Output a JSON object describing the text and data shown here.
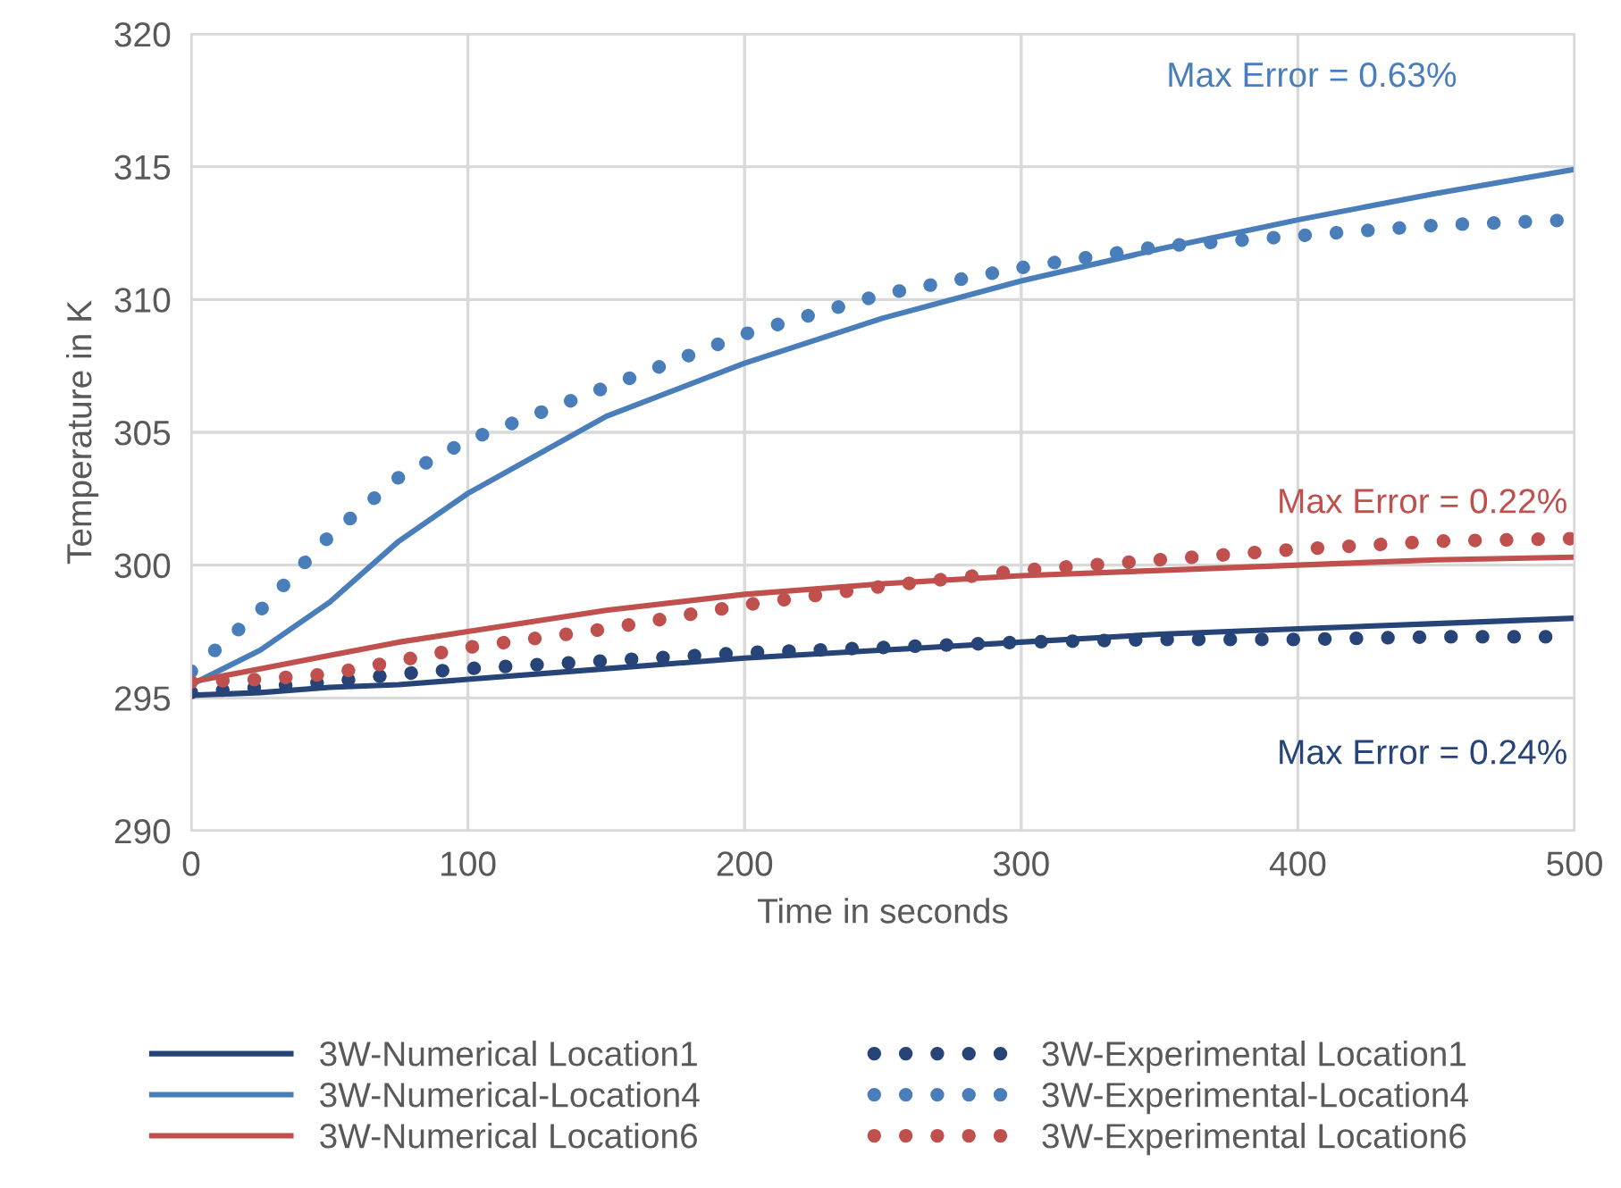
{
  "chart_data": {
    "type": "line",
    "xlabel": "Time in seconds",
    "ylabel": "Temperature in K",
    "x": [
      0,
      25,
      50,
      75,
      100,
      150,
      200,
      250,
      300,
      350,
      400,
      450,
      500
    ],
    "xlim": [
      0,
      500
    ],
    "xticks": [
      0,
      100,
      200,
      300,
      400,
      500
    ],
    "ylim": [
      290,
      320
    ],
    "yticks": [
      290,
      295,
      300,
      305,
      310,
      315,
      320
    ],
    "grid": true,
    "legend": "bottom",
    "series": [
      {
        "name": "3W-Numerical Location1",
        "color": "#264478",
        "line_style": "solid",
        "values": [
          295.1,
          295.2,
          295.4,
          295.5,
          295.7,
          296.1,
          296.5,
          296.8,
          297.1,
          297.4,
          297.6,
          297.8,
          298.0
        ]
      },
      {
        "name": "3W-Numerical-Location4",
        "color": "#4a7ebb",
        "line_style": "solid",
        "values": [
          295.5,
          296.8,
          298.6,
          300.9,
          302.7,
          305.6,
          307.6,
          309.3,
          310.7,
          311.9,
          313.0,
          314.0,
          314.9
        ]
      },
      {
        "name": "3W-Numerical Location6",
        "color": "#c0504d",
        "line_style": "solid",
        "values": [
          295.6,
          296.1,
          296.6,
          297.1,
          297.5,
          298.3,
          298.9,
          299.3,
          299.6,
          299.8,
          300.0,
          300.2,
          300.3
        ]
      },
      {
        "name": "3W-Experimental Location1",
        "color": "#264478",
        "line_style": "dotted",
        "values": [
          295.2,
          295.4,
          295.6,
          295.9,
          296.1,
          296.4,
          296.7,
          296.9,
          297.1,
          297.2,
          297.2,
          297.3,
          297.3
        ]
      },
      {
        "name": "3W-Experimental-Location4",
        "color": "#4a7ebb",
        "line_style": "dotted",
        "values": [
          296.0,
          298.3,
          301.1,
          303.3,
          304.7,
          306.7,
          308.7,
          310.2,
          311.2,
          312.0,
          312.4,
          312.8,
          313.0
        ]
      },
      {
        "name": "3W-Experimental Location6",
        "color": "#c0504d",
        "line_style": "dotted",
        "values": [
          295.6,
          295.7,
          295.9,
          296.4,
          296.9,
          297.6,
          298.5,
          299.2,
          299.8,
          300.2,
          300.6,
          300.9,
          301.0
        ]
      }
    ],
    "annotations": [
      "Max Error = 0.63%",
      "Max Error = 0.22%",
      "Max Error = 0.24%"
    ]
  }
}
